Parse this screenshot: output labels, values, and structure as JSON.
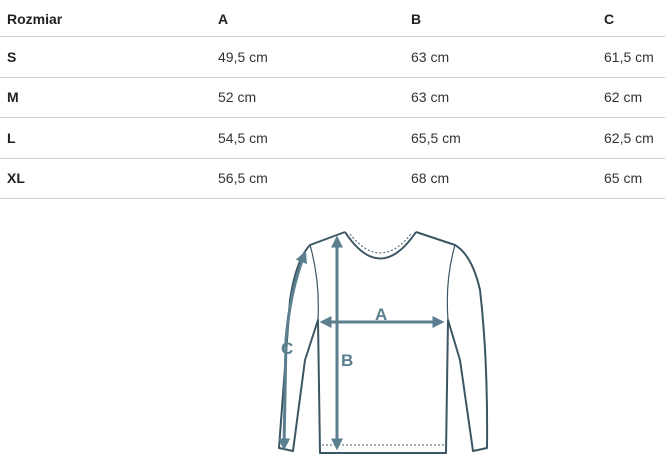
{
  "table": {
    "headers": [
      "Rozmiar",
      "A",
      "B",
      "C"
    ],
    "rows": [
      [
        "S",
        "49,5 cm",
        "63 cm",
        "61,5 cm"
      ],
      [
        "M",
        "52 cm",
        "63 cm",
        "62 cm"
      ],
      [
        "L",
        "54,5 cm",
        "65,5 cm",
        "62,5 cm"
      ],
      [
        "XL",
        "56,5 cm",
        "68 cm",
        "65 cm"
      ]
    ]
  },
  "diagram": {
    "labels": {
      "a": "A",
      "b": "B",
      "c": "C"
    },
    "colors": {
      "outline": "#3d5663",
      "arrows": "#5b7f8e"
    }
  }
}
